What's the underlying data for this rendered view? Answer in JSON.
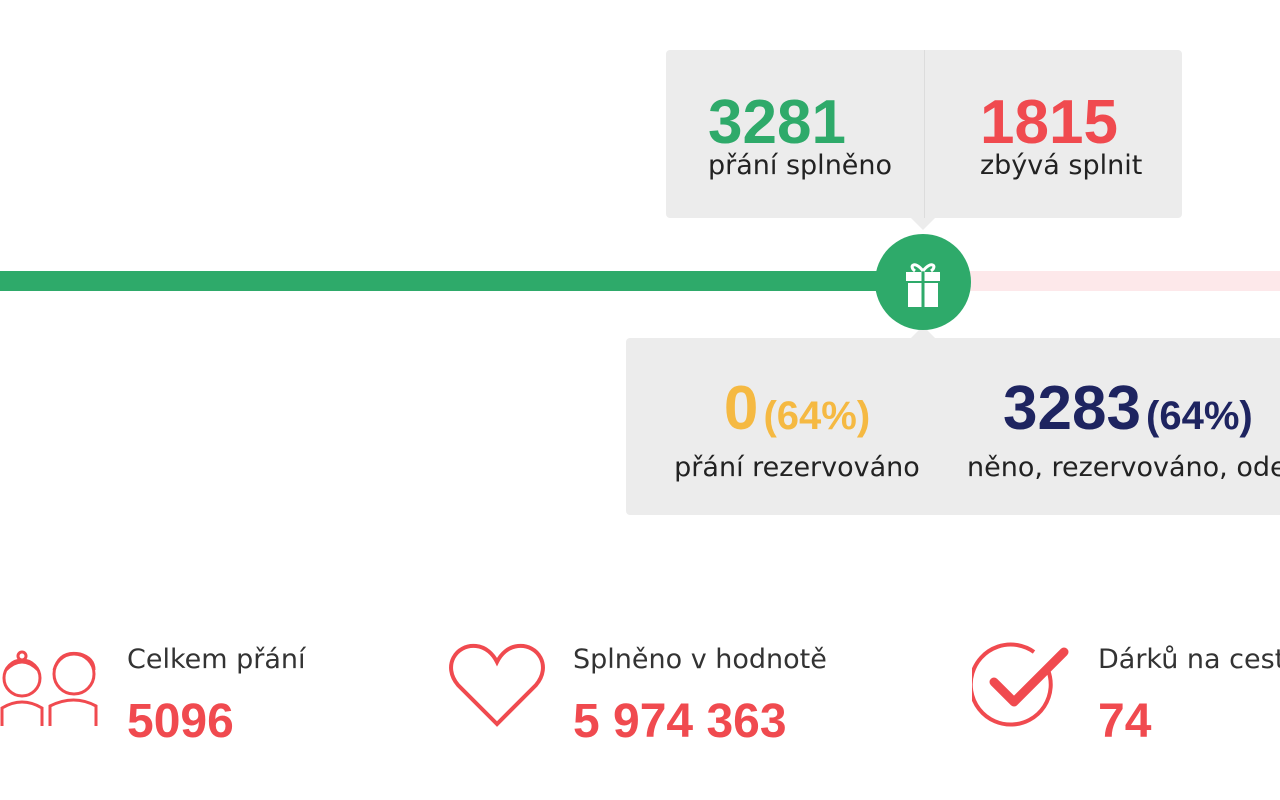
{
  "progress": {
    "done": {
      "value": "3281",
      "label": "přání splněno"
    },
    "remaining": {
      "value": "1815",
      "label": "zbývá splnit"
    },
    "reserved": {
      "value": "0",
      "percent": "(64%)",
      "label": "přání rezervováno"
    },
    "total_done": {
      "value": "3283",
      "percent": "(64%)",
      "label": "něno, rezervováno, ode"
    }
  },
  "stats": [
    {
      "label": "Celkem přání",
      "value": "5096"
    },
    {
      "label": "Splněno v hodnotě",
      "value": "5 974 363"
    },
    {
      "label": "Dárků na cest",
      "value": "74"
    }
  ]
}
